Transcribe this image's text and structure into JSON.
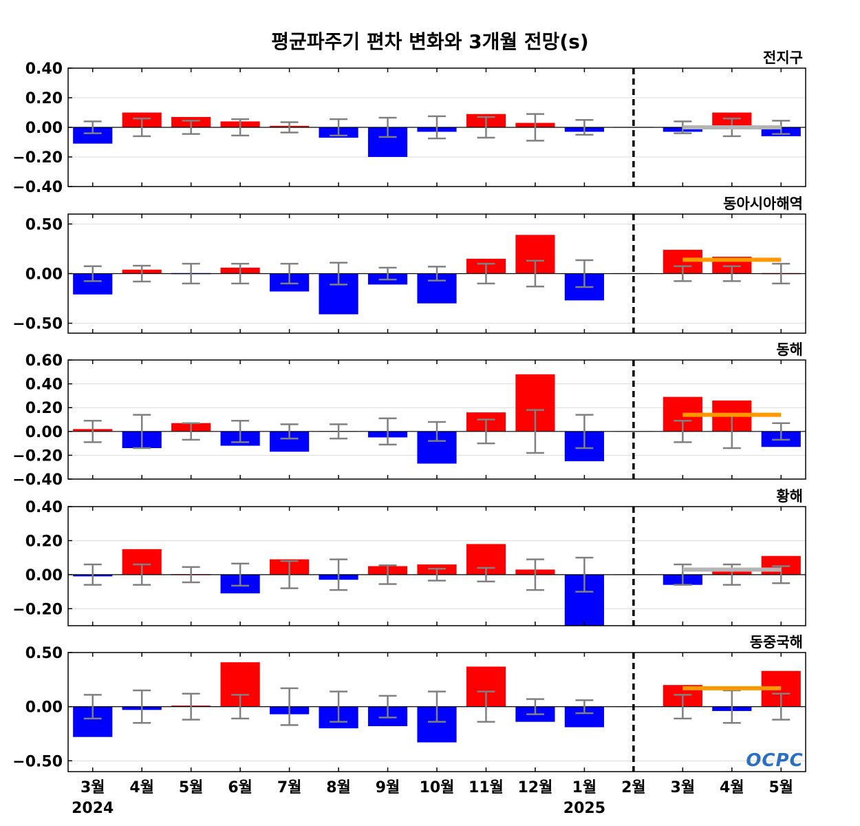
{
  "title": "평균파주기 편차 변화와 3개월 전망(s)",
  "logo": "OCPC",
  "colors": {
    "positive": "#ff0000",
    "negative": "#0000ff",
    "error_bar": "#808080",
    "forecast_line_orange": "#ff9900",
    "forecast_line_gray": "#b4b4b4",
    "divider": "#000000"
  },
  "x_labels": [
    "3월",
    "4월",
    "5월",
    "6월",
    "7월",
    "8월",
    "9월",
    "10월",
    "11월",
    "12월",
    "1월",
    "2월",
    "3월",
    "4월",
    "5월"
  ],
  "year_labels": [
    {
      "index": 0,
      "text": "2024"
    },
    {
      "index": 10,
      "text": "2025"
    }
  ],
  "divider_after_index": 11,
  "chart_data": [
    {
      "type": "bar",
      "panel": "전지구",
      "ylim": [
        -0.4,
        0.4
      ],
      "yticks": [
        -0.4,
        -0.2,
        0.0,
        0.2,
        0.4
      ],
      "ytick_labels": [
        "−0.40",
        "−0.20",
        "0.00",
        "0.20",
        "0.40"
      ],
      "categories": [
        "3월",
        "4월",
        "5월",
        "6월",
        "7월",
        "8월",
        "9월",
        "10월",
        "11월",
        "12월",
        "1월",
        "2월",
        "3월",
        "4월",
        "5월"
      ],
      "values": [
        -0.11,
        0.1,
        0.07,
        0.04,
        0.01,
        -0.07,
        -0.2,
        -0.03,
        0.09,
        0.03,
        -0.03,
        0.0,
        -0.03,
        0.1,
        -0.06
      ],
      "error": [
        0.04,
        0.06,
        0.045,
        0.055,
        0.035,
        0.055,
        0.065,
        0.075,
        0.07,
        0.09,
        0.05,
        null,
        0.04,
        0.06,
        0.045
      ],
      "forecast": {
        "value": 0.0,
        "color": "gray"
      }
    },
    {
      "type": "bar",
      "panel": "동아시아해역",
      "ylim": [
        -0.6,
        0.6
      ],
      "yticks": [
        -0.5,
        0.0,
        0.5
      ],
      "ytick_labels": [
        "−0.50",
        "0.00",
        "0.50"
      ],
      "categories": [
        "3월",
        "4월",
        "5월",
        "6월",
        "7월",
        "8월",
        "9월",
        "10월",
        "11월",
        "12월",
        "1월",
        "2월",
        "3월",
        "4월",
        "5월"
      ],
      "values": [
        -0.21,
        0.04,
        -0.01,
        0.06,
        -0.18,
        -0.41,
        -0.11,
        -0.3,
        0.15,
        0.39,
        -0.27,
        0.0,
        0.24,
        0.17,
        0.01
      ],
      "error": [
        0.075,
        0.08,
        0.1,
        0.1,
        0.1,
        0.11,
        0.06,
        0.07,
        0.1,
        0.13,
        0.135,
        null,
        0.075,
        0.075,
        0.1
      ],
      "forecast": {
        "value": 0.14,
        "color": "orange"
      }
    },
    {
      "type": "bar",
      "panel": "동해",
      "ylim": [
        -0.4,
        0.6
      ],
      "yticks": [
        -0.4,
        -0.2,
        0.0,
        0.2,
        0.4,
        0.6
      ],
      "ytick_labels": [
        "−0.40",
        "−0.20",
        "0.00",
        "0.20",
        "0.40",
        "0.60"
      ],
      "categories": [
        "3월",
        "4월",
        "5월",
        "6월",
        "7월",
        "8월",
        "9월",
        "10월",
        "11월",
        "12월",
        "1월",
        "2월",
        "3월",
        "4월",
        "5월"
      ],
      "values": [
        0.02,
        -0.14,
        0.07,
        -0.12,
        -0.17,
        0.0,
        -0.05,
        -0.27,
        0.16,
        0.48,
        -0.25,
        0.0,
        0.29,
        0.26,
        -0.13
      ],
      "error": [
        0.09,
        0.14,
        0.07,
        0.09,
        0.06,
        0.06,
        0.11,
        0.08,
        0.1,
        0.18,
        0.14,
        null,
        0.09,
        0.14,
        0.07
      ],
      "forecast": {
        "value": 0.14,
        "color": "orange"
      }
    },
    {
      "type": "bar",
      "panel": "황해",
      "ylim": [
        -0.3,
        0.4
      ],
      "yticks": [
        -0.2,
        0.0,
        0.2,
        0.4
      ],
      "ytick_labels": [
        "−0.20",
        "0.00",
        "0.20",
        "0.40"
      ],
      "categories": [
        "3월",
        "4월",
        "5월",
        "6월",
        "7월",
        "8월",
        "9월",
        "10월",
        "11월",
        "12월",
        "1월",
        "2월",
        "3월",
        "4월",
        "5월"
      ],
      "values": [
        -0.01,
        0.15,
        0.005,
        -0.11,
        0.09,
        -0.03,
        0.05,
        0.06,
        0.18,
        0.03,
        -0.3,
        0.0,
        -0.06,
        0.02,
        0.11
      ],
      "error": [
        0.06,
        0.06,
        0.045,
        0.065,
        0.08,
        0.09,
        0.055,
        0.035,
        0.04,
        0.09,
        0.1,
        null,
        0.06,
        0.06,
        0.05
      ],
      "forecast": {
        "value": 0.03,
        "color": "gray"
      }
    },
    {
      "type": "bar",
      "panel": "동중국해",
      "ylim": [
        -0.6,
        0.5
      ],
      "yticks": [
        -0.5,
        0.0,
        0.5
      ],
      "ytick_labels": [
        "−0.50",
        "0.00",
        "0.50"
      ],
      "categories": [
        "3월",
        "4월",
        "5월",
        "6월",
        "7월",
        "8월",
        "9월",
        "10월",
        "11월",
        "12월",
        "1월",
        "2월",
        "3월",
        "4월",
        "5월"
      ],
      "values": [
        -0.28,
        -0.03,
        0.01,
        0.41,
        -0.07,
        -0.2,
        -0.18,
        -0.33,
        0.37,
        -0.14,
        -0.19,
        0.0,
        0.2,
        -0.04,
        0.33
      ],
      "error": [
        0.11,
        0.15,
        0.12,
        0.11,
        0.17,
        0.14,
        0.1,
        0.14,
        0.14,
        0.07,
        0.06,
        null,
        0.11,
        0.15,
        0.12
      ],
      "forecast": {
        "value": 0.17,
        "color": "orange"
      }
    }
  ]
}
